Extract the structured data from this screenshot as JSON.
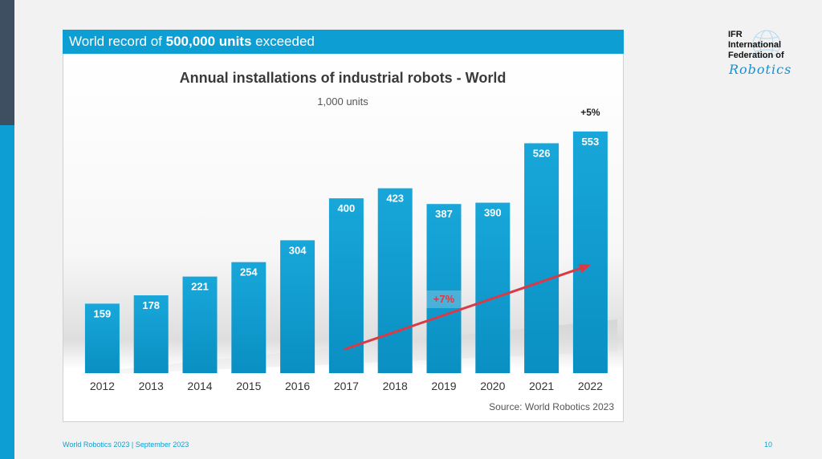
{
  "banner": {
    "prefix": "World record of ",
    "highlight": "500,000 units",
    "suffix": " exceeded"
  },
  "logo": {
    "line1": "IFR",
    "line2": "International",
    "line3": "Federation of",
    "script": "Robotics"
  },
  "footer": {
    "left": "World Robotics 2023  | September 2023",
    "page": "10"
  },
  "colors": {
    "accent": "#0d9fd3",
    "bar": "#0e9ccf",
    "trend_arrow": "#d93a45",
    "dark_strip": "#3d4f61"
  },
  "chart_data": {
    "type": "bar",
    "title": "Annual installations of industrial robots - World",
    "subtitle": "1,000 units",
    "categories": [
      "2012",
      "2013",
      "2014",
      "2015",
      "2016",
      "2017",
      "2018",
      "2019",
      "2020",
      "2021",
      "2022"
    ],
    "values": [
      159,
      178,
      221,
      254,
      304,
      400,
      423,
      387,
      390,
      526,
      553
    ],
    "ylim": [
      0,
      560
    ],
    "grid": false,
    "annotations": {
      "growth_label": "+5%",
      "trend_label": "+7%",
      "trend_from": "2017",
      "trend_to": "2022"
    },
    "source": "Source: World Robotics 2023"
  }
}
